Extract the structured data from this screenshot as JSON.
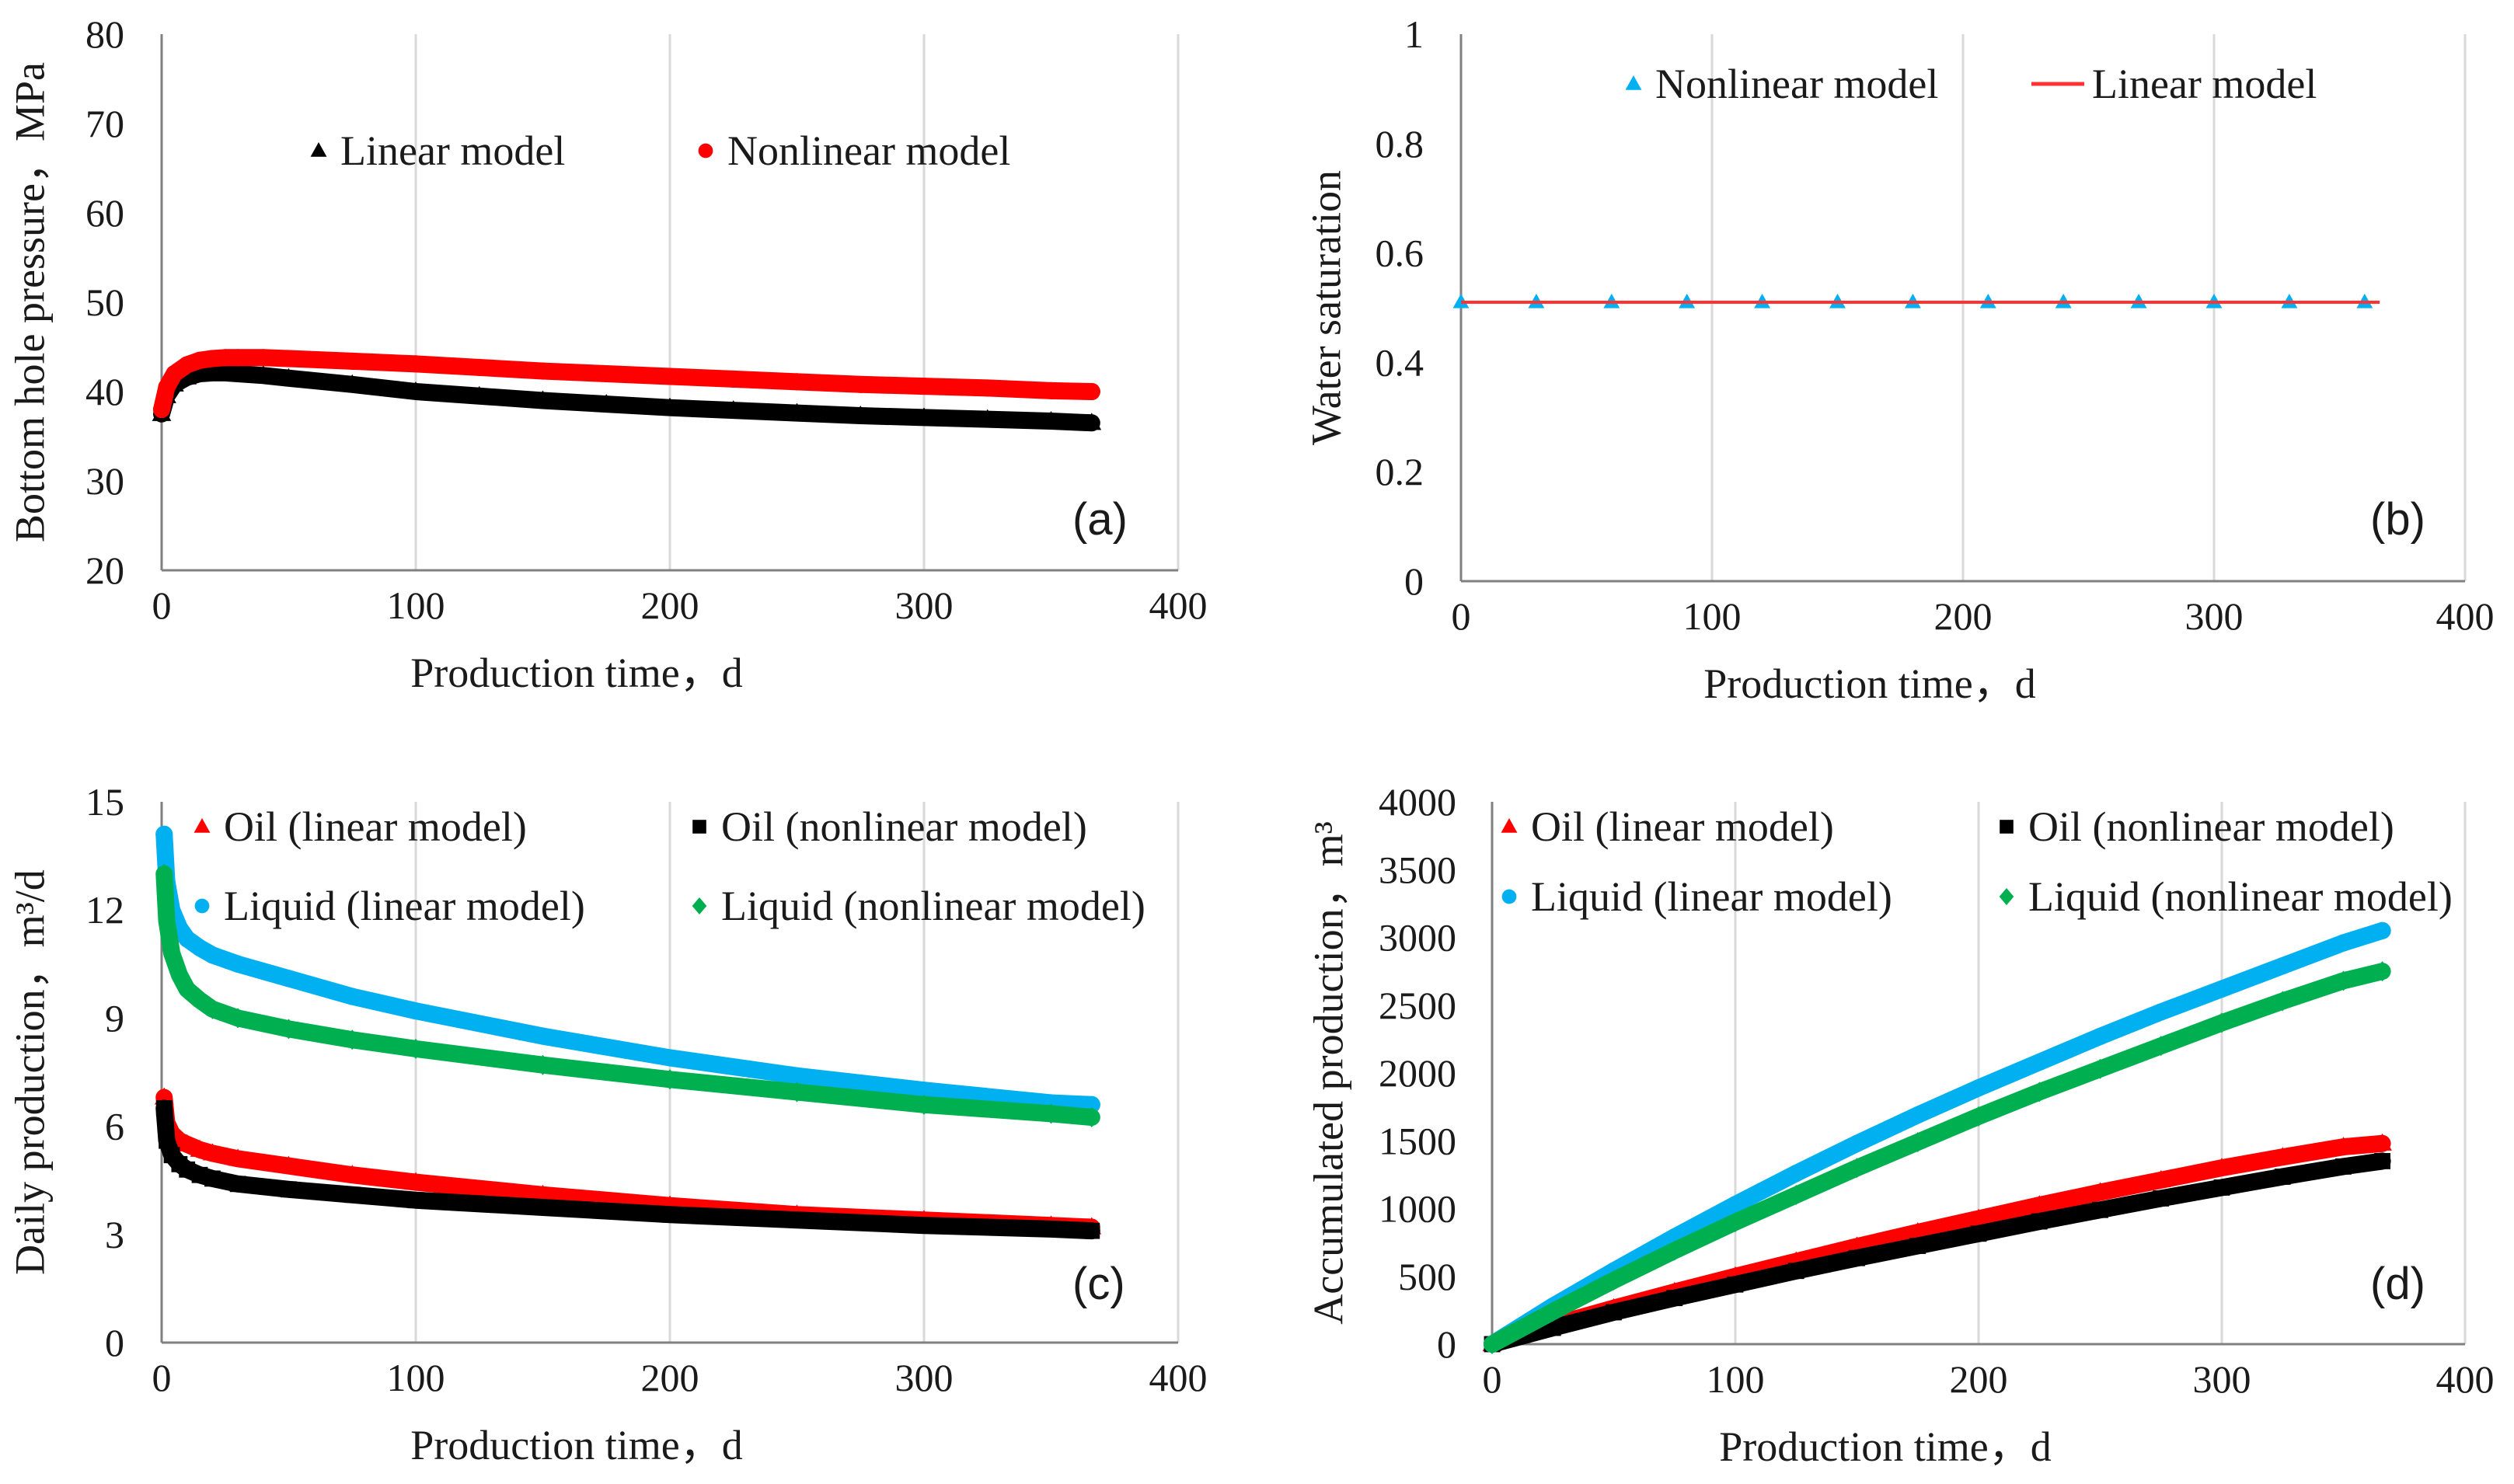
{
  "chart_data": [
    {
      "id": "a",
      "type": "scatter",
      "panel_label": "(a)",
      "xlabel": "Production time，d",
      "ylabel": "Bottom hole pressure，MPa",
      "xlim": [
        0,
        400
      ],
      "ylim": [
        20,
        80
      ],
      "xticks": [
        0,
        100,
        200,
        300,
        400
      ],
      "yticks": [
        20,
        30,
        40,
        50,
        60,
        70,
        80
      ],
      "grid": "vertical",
      "legend_position": "top-center",
      "series": [
        {
          "name": "Linear model",
          "color": "#000000",
          "marker": "triangle",
          "x": [
            0,
            2,
            5,
            10,
            15,
            20,
            25,
            30,
            40,
            50,
            75,
            100,
            125,
            150,
            175,
            200,
            225,
            250,
            275,
            300,
            325,
            350,
            366
          ],
          "y": [
            37.5,
            39.5,
            40.8,
            41.6,
            42.0,
            42.1,
            42.1,
            42.0,
            41.8,
            41.5,
            40.8,
            40.0,
            39.5,
            39.0,
            38.6,
            38.2,
            37.9,
            37.6,
            37.3,
            37.1,
            36.9,
            36.7,
            36.5
          ]
        },
        {
          "name": "Nonlinear model",
          "color": "#ff0000",
          "marker": "circle",
          "x": [
            0,
            2,
            5,
            10,
            15,
            20,
            25,
            30,
            40,
            50,
            75,
            100,
            125,
            150,
            175,
            200,
            225,
            250,
            275,
            300,
            325,
            350,
            366
          ],
          "y": [
            38.0,
            40.5,
            42.0,
            43.0,
            43.5,
            43.7,
            43.8,
            43.8,
            43.8,
            43.7,
            43.4,
            43.1,
            42.7,
            42.3,
            42.0,
            41.7,
            41.4,
            41.1,
            40.8,
            40.6,
            40.4,
            40.1,
            40.0
          ]
        }
      ]
    },
    {
      "id": "b",
      "type": "line",
      "panel_label": "(b)",
      "xlabel": "Production time，d",
      "ylabel": "Water saturation",
      "xlim": [
        0,
        400
      ],
      "ylim": [
        0,
        1
      ],
      "xticks": [
        0,
        100,
        200,
        300,
        400
      ],
      "yticks": [
        0,
        0.2,
        0.4,
        0.6,
        0.8,
        1
      ],
      "grid": "vertical",
      "legend_position": "top-center",
      "series": [
        {
          "name": "Nonlinear model",
          "color": "#00b0f0",
          "marker": "triangle",
          "x": [
            0,
            30,
            60,
            90,
            120,
            150,
            180,
            210,
            240,
            270,
            300,
            330,
            360
          ],
          "y": [
            0.51,
            0.51,
            0.51,
            0.51,
            0.51,
            0.51,
            0.51,
            0.51,
            0.51,
            0.51,
            0.51,
            0.51,
            0.51
          ]
        },
        {
          "name": "Linear model",
          "color": "#ff3333",
          "marker": "none",
          "x": [
            0,
            366
          ],
          "y": [
            0.51,
            0.51
          ]
        }
      ]
    },
    {
      "id": "c",
      "type": "scatter",
      "panel_label": "(c)",
      "xlabel": "Production time，d",
      "ylabel": "Daily production，m³/d",
      "xlim": [
        0,
        400
      ],
      "ylim": [
        0,
        15
      ],
      "xticks": [
        0,
        100,
        200,
        300,
        400
      ],
      "yticks": [
        0,
        3,
        6,
        9,
        12,
        15
      ],
      "grid": "vertical",
      "legend_position": "top",
      "series": [
        {
          "name": "Oil (linear model)",
          "color": "#ff0000",
          "marker": "triangle",
          "x": [
            1,
            2,
            4,
            7,
            10,
            15,
            20,
            30,
            50,
            75,
            100,
            150,
            200,
            250,
            300,
            350,
            366
          ],
          "y": [
            6.8,
            6.1,
            5.8,
            5.6,
            5.5,
            5.35,
            5.25,
            5.1,
            4.9,
            4.65,
            4.45,
            4.1,
            3.8,
            3.55,
            3.4,
            3.25,
            3.2
          ]
        },
        {
          "name": "Oil (nonlinear model)",
          "color": "#000000",
          "marker": "square",
          "x": [
            1,
            2,
            4,
            7,
            10,
            15,
            20,
            30,
            50,
            75,
            100,
            150,
            200,
            250,
            300,
            350,
            366
          ],
          "y": [
            6.5,
            5.6,
            5.2,
            4.95,
            4.8,
            4.65,
            4.55,
            4.4,
            4.25,
            4.1,
            3.95,
            3.75,
            3.55,
            3.4,
            3.25,
            3.15,
            3.1
          ]
        },
        {
          "name": "Liquid (linear model)",
          "color": "#00b0f0",
          "marker": "circle",
          "x": [
            1,
            2,
            4,
            7,
            10,
            15,
            20,
            30,
            50,
            75,
            100,
            150,
            200,
            250,
            300,
            350,
            366
          ],
          "y": [
            14.1,
            12.8,
            12.0,
            11.5,
            11.2,
            10.95,
            10.75,
            10.5,
            10.1,
            9.6,
            9.2,
            8.5,
            7.9,
            7.4,
            7.0,
            6.65,
            6.6
          ]
        },
        {
          "name": "Liquid (nonlinear model)",
          "color": "#00b050",
          "marker": "diamond",
          "x": [
            1,
            2,
            4,
            7,
            10,
            15,
            20,
            30,
            50,
            75,
            100,
            150,
            200,
            250,
            300,
            350,
            366
          ],
          "y": [
            13.0,
            11.7,
            10.8,
            10.2,
            9.8,
            9.5,
            9.25,
            9.0,
            8.7,
            8.4,
            8.15,
            7.7,
            7.3,
            6.95,
            6.6,
            6.35,
            6.25
          ]
        }
      ]
    },
    {
      "id": "d",
      "type": "scatter",
      "panel_label": "(d)",
      "xlabel": "Production time，d",
      "ylabel": "Accumulated production，m³",
      "xlim": [
        0,
        400
      ],
      "ylim": [
        0,
        4000
      ],
      "xticks": [
        0,
        100,
        200,
        300,
        400
      ],
      "yticks": [
        0,
        500,
        1000,
        1500,
        2000,
        2500,
        3000,
        3500,
        4000
      ],
      "grid": "vertical",
      "legend_position": "top",
      "series": [
        {
          "name": "Oil (linear model)",
          "color": "#ff0000",
          "marker": "triangle",
          "x": [
            0,
            25,
            50,
            75,
            100,
            125,
            150,
            175,
            200,
            225,
            250,
            275,
            300,
            325,
            350,
            366
          ],
          "y": [
            0,
            140,
            265,
            385,
            500,
            610,
            720,
            825,
            925,
            1025,
            1120,
            1210,
            1300,
            1380,
            1455,
            1480
          ]
        },
        {
          "name": "Oil (nonlinear model)",
          "color": "#000000",
          "marker": "square",
          "x": [
            0,
            25,
            50,
            75,
            100,
            125,
            150,
            175,
            200,
            225,
            250,
            275,
            300,
            325,
            350,
            366
          ],
          "y": [
            0,
            120,
            235,
            340,
            440,
            540,
            635,
            725,
            815,
            905,
            990,
            1075,
            1155,
            1235,
            1310,
            1350
          ]
        },
        {
          "name": "Liquid (linear model)",
          "color": "#00b0f0",
          "marker": "circle",
          "x": [
            0,
            25,
            50,
            75,
            100,
            125,
            150,
            175,
            200,
            225,
            250,
            275,
            300,
            325,
            350,
            366
          ],
          "y": [
            0,
            280,
            540,
            790,
            1030,
            1260,
            1480,
            1690,
            1890,
            2080,
            2270,
            2450,
            2620,
            2790,
            2960,
            3050
          ]
        },
        {
          "name": "Liquid (nonlinear model)",
          "color": "#00b050",
          "marker": "diamond",
          "x": [
            0,
            25,
            50,
            75,
            100,
            125,
            150,
            175,
            200,
            225,
            250,
            275,
            300,
            325,
            350,
            366
          ],
          "y": [
            0,
            240,
            470,
            690,
            900,
            1100,
            1300,
            1490,
            1680,
            1860,
            2030,
            2200,
            2370,
            2530,
            2680,
            2750
          ]
        }
      ]
    }
  ]
}
